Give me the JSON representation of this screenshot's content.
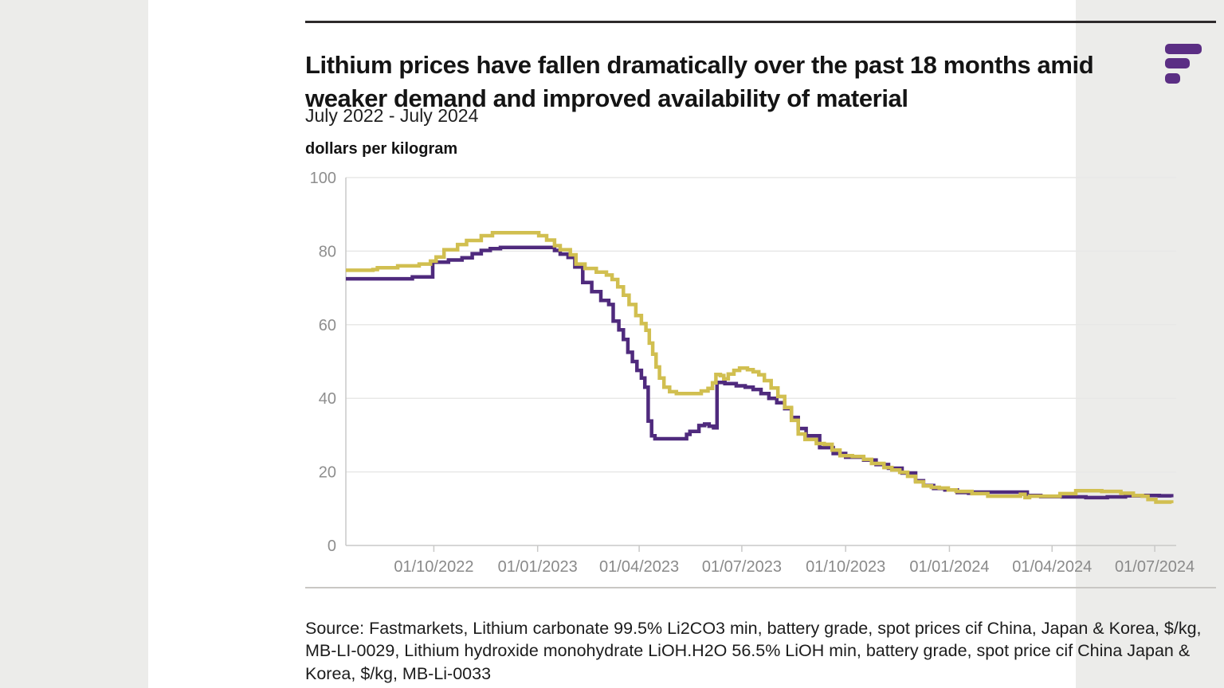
{
  "page": {
    "background": "#ececea",
    "card_background": "#ffffff"
  },
  "header": {
    "title": "Lithium prices have fallen dramatically over the past 18 months amid weaker demand and improved availability of material",
    "subtitle": "July 2022 - July 2024",
    "axis_unit_label": "dollars per kilogram",
    "logo_color": "#5b2e84"
  },
  "source_note": "Source: Fastmarkets, Lithium carbonate 99.5% Li2CO3 min, battery grade, spot prices cif China, Japan & Korea, $/kg, MB-LI-0029, Lithium hydroxide monohydrate LiOH.H2O 56.5% LiOH min, battery grade, spot price cif China Japan & Korea, $/kg, MB-Li-0033",
  "chart_data": {
    "type": "line",
    "line_style": "step-after",
    "title": "Lithium prices have fallen dramatically over the past 18 months amid weaker demand and improved availability of material",
    "subtitle": "July 2022 - July 2024",
    "xlabel": "",
    "ylabel": "dollars per kilogram",
    "ylim": [
      0,
      100
    ],
    "y_ticks": [
      0,
      20,
      40,
      60,
      80,
      100
    ],
    "x_range": [
      "2022-07-15",
      "2024-07-20"
    ],
    "x_ticks": [
      {
        "date": "2022-10-01",
        "label": "01/10/2022"
      },
      {
        "date": "2023-01-01",
        "label": "01/01/2023"
      },
      {
        "date": "2023-04-01",
        "label": "01/04/2023"
      },
      {
        "date": "2023-07-01",
        "label": "01/07/2023"
      },
      {
        "date": "2023-10-01",
        "label": "01/10/2023"
      },
      {
        "date": "2024-01-01",
        "label": "01/01/2024"
      },
      {
        "date": "2024-04-01",
        "label": "01/04/2024"
      },
      {
        "date": "2024-07-01",
        "label": "01/07/2024"
      }
    ],
    "grid": "horizontal-only",
    "legend": "none",
    "series": [
      {
        "name": "Lithium carbonate 99.5% Li2CO3 min, battery grade, spot prices cif China, Japan & Korea, $/kg, MB-LI-0029",
        "color": "#4f2a7d",
        "points": [
          [
            "2022-07-15",
            72.5
          ],
          [
            "2022-09-12",
            73
          ],
          [
            "2022-09-30",
            77
          ],
          [
            "2022-10-14",
            77.6
          ],
          [
            "2022-10-26",
            78.2
          ],
          [
            "2022-11-04",
            79.3
          ],
          [
            "2022-11-12",
            80.2
          ],
          [
            "2022-11-20",
            80.7
          ],
          [
            "2022-11-29",
            81
          ],
          [
            "2023-01-10",
            81
          ],
          [
            "2023-01-16",
            80.2
          ],
          [
            "2023-01-21",
            79.2
          ],
          [
            "2023-01-28",
            78.3
          ],
          [
            "2023-02-03",
            75.7
          ],
          [
            "2023-02-10",
            71.5
          ],
          [
            "2023-02-18",
            69
          ],
          [
            "2023-02-26",
            66.6
          ],
          [
            "2023-03-05",
            65.5
          ],
          [
            "2023-03-09",
            61
          ],
          [
            "2023-03-14",
            58.6
          ],
          [
            "2023-03-18",
            56
          ],
          [
            "2023-03-22",
            52.5
          ],
          [
            "2023-03-26",
            50
          ],
          [
            "2023-03-30",
            47.6
          ],
          [
            "2023-04-03",
            45.5
          ],
          [
            "2023-04-06",
            43
          ],
          [
            "2023-04-09",
            33.8
          ],
          [
            "2023-04-12",
            29.8
          ],
          [
            "2023-04-15",
            29
          ],
          [
            "2023-05-08",
            29
          ],
          [
            "2023-05-13",
            30.2
          ],
          [
            "2023-05-16",
            31
          ],
          [
            "2023-05-21",
            31
          ],
          [
            "2023-05-24",
            32.6
          ],
          [
            "2023-05-29",
            33
          ],
          [
            "2023-06-02",
            32.4
          ],
          [
            "2023-06-06",
            32
          ],
          [
            "2023-06-09",
            44.3
          ],
          [
            "2023-06-16",
            44
          ],
          [
            "2023-06-26",
            43.4
          ],
          [
            "2023-07-04",
            43
          ],
          [
            "2023-07-11",
            42.4
          ],
          [
            "2023-07-18",
            41.3
          ],
          [
            "2023-07-25",
            40
          ],
          [
            "2023-08-01",
            38.8
          ],
          [
            "2023-08-08",
            37.2
          ],
          [
            "2023-08-14",
            34.8
          ],
          [
            "2023-08-20",
            31.8
          ],
          [
            "2023-08-27",
            29.8
          ],
          [
            "2023-09-08",
            26.6
          ],
          [
            "2023-09-20",
            25
          ],
          [
            "2023-10-01",
            24
          ],
          [
            "2023-10-17",
            23.2
          ],
          [
            "2023-10-28",
            22
          ],
          [
            "2023-11-08",
            21
          ],
          [
            "2023-11-20",
            19.7
          ],
          [
            "2023-12-02",
            17.6
          ],
          [
            "2023-12-09",
            16.3
          ],
          [
            "2023-12-18",
            15.5
          ],
          [
            "2023-12-28",
            15.1
          ],
          [
            "2024-01-08",
            14.4
          ],
          [
            "2024-01-18",
            14.2
          ],
          [
            "2024-01-24",
            14.5
          ],
          [
            "2024-03-02",
            14.5
          ],
          [
            "2024-03-10",
            13.6
          ],
          [
            "2024-03-22",
            13.3
          ],
          [
            "2024-04-10",
            13.2
          ],
          [
            "2024-05-01",
            13
          ],
          [
            "2024-05-20",
            13.2
          ],
          [
            "2024-06-05",
            13.5
          ],
          [
            "2024-06-22",
            13.6
          ],
          [
            "2024-07-05",
            13.5
          ],
          [
            "2024-07-16",
            13.1
          ]
        ]
      },
      {
        "name": "Lithium hydroxide monohydrate LiOH.H2O 56.5% LiOH min, battery grade, spot price cif China Japan & Korea, $/kg, MB-Li-0033",
        "color": "#d1bf50",
        "points": [
          [
            "2022-07-15",
            74.8
          ],
          [
            "2022-08-08",
            75
          ],
          [
            "2022-08-12",
            75.5
          ],
          [
            "2022-08-30",
            76
          ],
          [
            "2022-09-18",
            76.5
          ],
          [
            "2022-09-28",
            77.3
          ],
          [
            "2022-10-03",
            78.4
          ],
          [
            "2022-10-10",
            80.4
          ],
          [
            "2022-10-22",
            81.8
          ],
          [
            "2022-10-30",
            82.9
          ],
          [
            "2022-11-12",
            84.2
          ],
          [
            "2022-11-22",
            85
          ],
          [
            "2022-12-26",
            85
          ],
          [
            "2023-01-02",
            84.2
          ],
          [
            "2023-01-09",
            83
          ],
          [
            "2023-01-16",
            81.5
          ],
          [
            "2023-01-21",
            80.4
          ],
          [
            "2023-01-30",
            79
          ],
          [
            "2023-02-04",
            76.5
          ],
          [
            "2023-02-12",
            75.3
          ],
          [
            "2023-02-22",
            74.3
          ],
          [
            "2023-03-03",
            73.5
          ],
          [
            "2023-03-08",
            72.3
          ],
          [
            "2023-03-13",
            70.3
          ],
          [
            "2023-03-18",
            68
          ],
          [
            "2023-03-23",
            65.5
          ],
          [
            "2023-03-29",
            62.5
          ],
          [
            "2023-04-03",
            60.3
          ],
          [
            "2023-04-07",
            58.5
          ],
          [
            "2023-04-10",
            55
          ],
          [
            "2023-04-13",
            52
          ],
          [
            "2023-04-16",
            48.5
          ],
          [
            "2023-04-19",
            45.5
          ],
          [
            "2023-04-23",
            43
          ],
          [
            "2023-04-28",
            41.8
          ],
          [
            "2023-05-04",
            41.3
          ],
          [
            "2023-05-22",
            41.3
          ],
          [
            "2023-05-26",
            42
          ],
          [
            "2023-06-01",
            42.7
          ],
          [
            "2023-06-05",
            44.2
          ],
          [
            "2023-06-08",
            46.5
          ],
          [
            "2023-06-12",
            46.2
          ],
          [
            "2023-06-15",
            45.3
          ],
          [
            "2023-06-19",
            46.6
          ],
          [
            "2023-06-24",
            47.6
          ],
          [
            "2023-06-29",
            48.2
          ],
          [
            "2023-07-06",
            47.8
          ],
          [
            "2023-07-11",
            47.2
          ],
          [
            "2023-07-16",
            46.4
          ],
          [
            "2023-07-21",
            44.8
          ],
          [
            "2023-07-27",
            42.8
          ],
          [
            "2023-08-02",
            40.5
          ],
          [
            "2023-08-08",
            37.5
          ],
          [
            "2023-08-14",
            34
          ],
          [
            "2023-08-20",
            30.3
          ],
          [
            "2023-08-26",
            28.8
          ],
          [
            "2023-09-05",
            27.7
          ],
          [
            "2023-09-12",
            27.5
          ],
          [
            "2023-09-19",
            25.9
          ],
          [
            "2023-09-26",
            24.4
          ],
          [
            "2023-10-07",
            24.2
          ],
          [
            "2023-10-17",
            23.4
          ],
          [
            "2023-10-24",
            22.3
          ],
          [
            "2023-11-04",
            21.2
          ],
          [
            "2023-11-11",
            20.5
          ],
          [
            "2023-11-18",
            19.9
          ],
          [
            "2023-11-25",
            18.8
          ],
          [
            "2023-12-02",
            17.3
          ],
          [
            "2023-12-09",
            16.2
          ],
          [
            "2023-12-16",
            15.8
          ],
          [
            "2023-12-23",
            15.6
          ],
          [
            "2023-12-31",
            15.1
          ],
          [
            "2024-01-07",
            14.7
          ],
          [
            "2024-01-21",
            14.1
          ],
          [
            "2024-02-04",
            13.4
          ],
          [
            "2024-03-04",
            13.9
          ],
          [
            "2024-03-08",
            13.0
          ],
          [
            "2024-03-12",
            13.4
          ],
          [
            "2024-03-25",
            13.4
          ],
          [
            "2024-04-08",
            14.1
          ],
          [
            "2024-04-22",
            14.9
          ],
          [
            "2024-05-15",
            14.7
          ],
          [
            "2024-06-01",
            14.2
          ],
          [
            "2024-06-12",
            13.6
          ],
          [
            "2024-06-20",
            13.4
          ],
          [
            "2024-06-25",
            12.5
          ],
          [
            "2024-07-02",
            11.8
          ],
          [
            "2024-07-16",
            11.5
          ]
        ]
      }
    ]
  }
}
